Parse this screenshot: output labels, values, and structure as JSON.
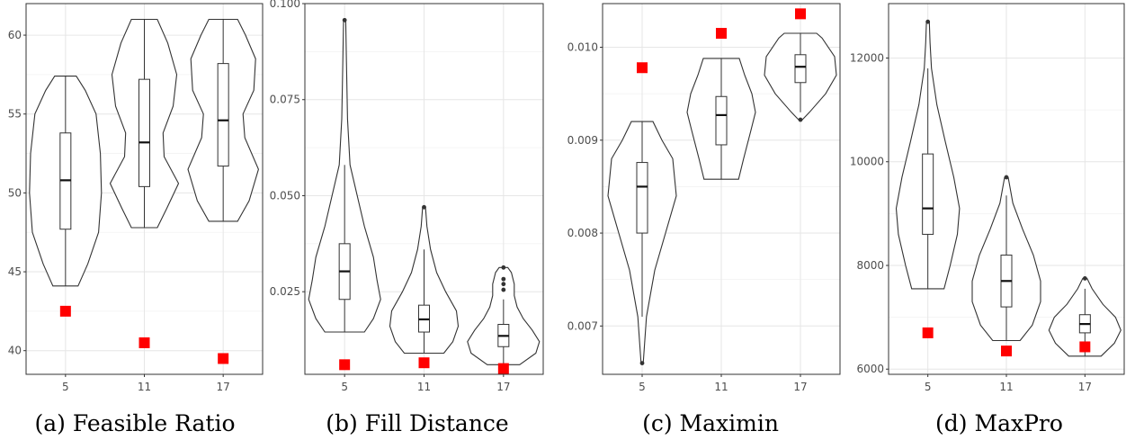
{
  "chart_data": [
    {
      "type": "violin",
      "caption": "(a) Feasible Ratio",
      "categories": [
        "5",
        "11",
        "17"
      ],
      "ylim": [
        38.5,
        62
      ],
      "yticks": [
        40,
        45,
        50,
        55,
        60
      ],
      "ytick_labels": [
        "40",
        "45",
        "50",
        "55",
        "60"
      ],
      "grid": true,
      "violins": [
        {
          "category": "5",
          "min": 44.1,
          "q1": 47.7,
          "median": 50.8,
          "q3": 53.8,
          "max": 57.4,
          "outliers": [],
          "density": [
            [
              44.1,
              0.35
            ],
            [
              45.5,
              0.62
            ],
            [
              47.5,
              0.92
            ],
            [
              50,
              1.0
            ],
            [
              52.5,
              0.97
            ],
            [
              55,
              0.85
            ],
            [
              56.5,
              0.55
            ],
            [
              57.4,
              0.3
            ]
          ]
        },
        {
          "category": "11",
          "min": 47.8,
          "q1": 50.4,
          "median": 53.2,
          "q3": 57.2,
          "max": 61.0,
          "outliers": [],
          "density": [
            [
              47.8,
              0.36
            ],
            [
              49,
              0.62
            ],
            [
              50.6,
              0.95
            ],
            [
              52.3,
              0.55
            ],
            [
              53.8,
              0.52
            ],
            [
              55.5,
              0.8
            ],
            [
              57.5,
              0.9
            ],
            [
              59.5,
              0.65
            ],
            [
              61.0,
              0.36
            ]
          ]
        },
        {
          "category": "17",
          "min": 48.2,
          "q1": 51.7,
          "median": 54.6,
          "q3": 58.2,
          "max": 61.0,
          "outliers": [],
          "density": [
            [
              48.2,
              0.4
            ],
            [
              49.5,
              0.72
            ],
            [
              51.5,
              0.98
            ],
            [
              53.5,
              0.6
            ],
            [
              55,
              0.55
            ],
            [
              56.5,
              0.85
            ],
            [
              58.5,
              0.9
            ],
            [
              60,
              0.62
            ],
            [
              61.0,
              0.4
            ]
          ]
        }
      ],
      "markers": [
        {
          "category": "5",
          "value": 42.5
        },
        {
          "category": "11",
          "value": 40.5
        },
        {
          "category": "17",
          "value": 39.5
        }
      ],
      "marker_color": "#ff0000"
    },
    {
      "type": "violin",
      "caption": "(b) Fill Distance",
      "categories": [
        "5",
        "11",
        "17"
      ],
      "ylim": [
        0.0035,
        0.1
      ],
      "yticks": [
        0.025,
        0.05,
        0.075,
        0.1
      ],
      "ytick_labels": [
        "0.025",
        "0.050",
        "0.075",
        "0.100"
      ],
      "grid": true,
      "violins": [
        {
          "category": "5",
          "min": 0.0145,
          "q1": 0.023,
          "median": 0.0303,
          "q3": 0.0375,
          "max": 0.058,
          "outliers": [
            0.0957
          ],
          "density": [
            [
              0.0145,
              0.55
            ],
            [
              0.018,
              0.8
            ],
            [
              0.023,
              1.0
            ],
            [
              0.028,
              0.9
            ],
            [
              0.034,
              0.8
            ],
            [
              0.042,
              0.55
            ],
            [
              0.05,
              0.35
            ],
            [
              0.058,
              0.15
            ],
            [
              0.07,
              0.08
            ],
            [
              0.085,
              0.05
            ],
            [
              0.0957,
              0.03
            ]
          ]
        },
        {
          "category": "11",
          "min": 0.009,
          "q1": 0.0145,
          "median": 0.0178,
          "q3": 0.0215,
          "max": 0.036,
          "outliers": [
            0.047
          ],
          "density": [
            [
              0.009,
              0.55
            ],
            [
              0.012,
              0.8
            ],
            [
              0.016,
              0.95
            ],
            [
              0.02,
              0.9
            ],
            [
              0.025,
              0.6
            ],
            [
              0.03,
              0.35
            ],
            [
              0.036,
              0.18
            ],
            [
              0.042,
              0.08
            ],
            [
              0.047,
              0.04
            ]
          ]
        },
        {
          "category": "17",
          "min": 0.006,
          "q1": 0.0107,
          "median": 0.0135,
          "q3": 0.0165,
          "max": 0.023,
          "outliers": [
            0.0255,
            0.027,
            0.0283,
            0.0313
          ],
          "density": [
            [
              0.006,
              0.45
            ],
            [
              0.009,
              0.9
            ],
            [
              0.012,
              1.0
            ],
            [
              0.015,
              0.8
            ],
            [
              0.018,
              0.55
            ],
            [
              0.021,
              0.38
            ],
            [
              0.024,
              0.3
            ],
            [
              0.027,
              0.3
            ],
            [
              0.03,
              0.22
            ],
            [
              0.0313,
              0.12
            ]
          ]
        }
      ],
      "markers": [
        {
          "category": "5",
          "value": 0.006
        },
        {
          "category": "11",
          "value": 0.0065
        },
        {
          "category": "17",
          "value": 0.005
        }
      ],
      "marker_color": "#ff0000"
    },
    {
      "type": "violin",
      "caption": "(c) Maximin",
      "categories": [
        "5",
        "11",
        "17"
      ],
      "ylim": [
        0.00648,
        0.01047
      ],
      "yticks": [
        0.007,
        0.008,
        0.009,
        0.01
      ],
      "ytick_labels": [
        "0.007",
        "0.008",
        "0.009",
        "0.010"
      ],
      "grid": true,
      "violins": [
        {
          "category": "5",
          "min": 0.0071,
          "q1": 0.008,
          "median": 0.0085,
          "q3": 0.00876,
          "max": 0.0092,
          "outliers": [
            0.0066
          ],
          "density": [
            [
              0.0066,
              0.03
            ],
            [
              0.0071,
              0.12
            ],
            [
              0.0076,
              0.35
            ],
            [
              0.008,
              0.65
            ],
            [
              0.0084,
              0.95
            ],
            [
              0.0088,
              0.85
            ],
            [
              0.009,
              0.55
            ],
            [
              0.0092,
              0.3
            ]
          ]
        },
        {
          "category": "11",
          "min": 0.00858,
          "q1": 0.00895,
          "median": 0.00927,
          "q3": 0.00947,
          "max": 0.00988,
          "outliers": [],
          "density": [
            [
              0.00858,
              0.48
            ],
            [
              0.0088,
              0.62
            ],
            [
              0.0091,
              0.82
            ],
            [
              0.0093,
              0.95
            ],
            [
              0.0095,
              0.85
            ],
            [
              0.0097,
              0.65
            ],
            [
              0.00988,
              0.5
            ]
          ]
        },
        {
          "category": "17",
          "min": 0.0093,
          "q1": 0.00962,
          "median": 0.00979,
          "q3": 0.00992,
          "max": 0.01015,
          "outliers": [
            0.00922
          ],
          "density": [
            [
              0.00922,
              0.05
            ],
            [
              0.0093,
              0.25
            ],
            [
              0.0095,
              0.7
            ],
            [
              0.0097,
              1.0
            ],
            [
              0.0099,
              0.95
            ],
            [
              0.0101,
              0.6
            ],
            [
              0.01015,
              0.45
            ]
          ]
        }
      ],
      "markers": [
        {
          "category": "5",
          "value": 0.00978
        },
        {
          "category": "11",
          "value": 0.01015
        },
        {
          "category": "17",
          "value": 0.01036
        }
      ],
      "marker_color": "#ff0000"
    },
    {
      "type": "violin",
      "caption": "(d) MaxPro",
      "categories": [
        "5",
        "11",
        "17"
      ],
      "ylim": [
        5900,
        13050
      ],
      "yticks": [
        6000,
        8000,
        10000,
        12000
      ],
      "ytick_labels": [
        "6000",
        "8000",
        "10000",
        "12000"
      ],
      "grid": true,
      "violins": [
        {
          "category": "5",
          "min": 7550,
          "q1": 8600,
          "median": 9100,
          "q3": 10150,
          "max": 11800,
          "outliers": [
            12700
          ],
          "density": [
            [
              7550,
              0.45
            ],
            [
              8000,
              0.62
            ],
            [
              8600,
              0.82
            ],
            [
              9100,
              0.88
            ],
            [
              9700,
              0.72
            ],
            [
              10400,
              0.48
            ],
            [
              11100,
              0.25
            ],
            [
              11800,
              0.1
            ],
            [
              12300,
              0.06
            ],
            [
              12700,
              0.04
            ]
          ]
        },
        {
          "category": "11",
          "min": 6550,
          "q1": 7200,
          "median": 7700,
          "q3": 8200,
          "max": 9350,
          "outliers": [
            9700
          ],
          "density": [
            [
              6550,
              0.38
            ],
            [
              6850,
              0.72
            ],
            [
              7300,
              0.95
            ],
            [
              7700,
              0.95
            ],
            [
              8200,
              0.75
            ],
            [
              8700,
              0.45
            ],
            [
              9200,
              0.18
            ],
            [
              9700,
              0.05
            ]
          ]
        },
        {
          "category": "17",
          "min": 6250,
          "q1": 6700,
          "median": 6870,
          "q3": 7050,
          "max": 7550,
          "outliers": [
            7750
          ],
          "density": [
            [
              6250,
              0.45
            ],
            [
              6500,
              0.82
            ],
            [
              6750,
              1.0
            ],
            [
              7000,
              0.85
            ],
            [
              7250,
              0.5
            ],
            [
              7550,
              0.2
            ],
            [
              7750,
              0.06
            ]
          ]
        }
      ],
      "markers": [
        {
          "category": "5",
          "value": 6700
        },
        {
          "category": "11",
          "value": 6350
        },
        {
          "category": "17",
          "value": 6430
        }
      ],
      "marker_color": "#ff0000"
    }
  ]
}
